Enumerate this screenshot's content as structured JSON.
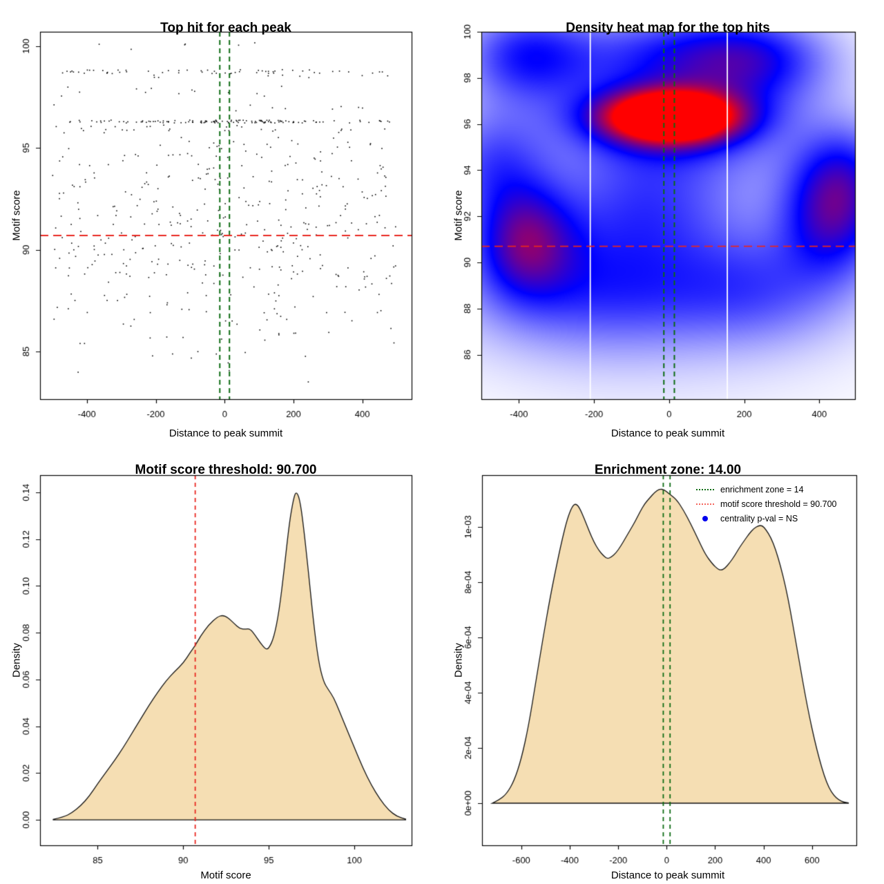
{
  "page": {
    "background": "#ffffff"
  },
  "colors": {
    "point": "#000000",
    "frame": "#000000",
    "tick_text": "#000000",
    "threshold_red": "#e8261f",
    "zone_green": "#0c6b12",
    "legend_red": "#f4645c",
    "legend_blue": "#0000ee",
    "area_fill": "#f5deb3",
    "area_stroke": "#111111",
    "white_gridline": "#ffffff",
    "heat_ramp": [
      "#ffffff",
      "#0000ff",
      "#ff0000"
    ]
  },
  "chart_data": [
    {
      "id": "top-hit-scatter",
      "type": "scatter",
      "title": "Top hit for each peak",
      "xlabel": "Distance to peak summit",
      "ylabel": "Motif score",
      "xlim": [
        -536,
        543
      ],
      "ylim": [
        82.66,
        100.71
      ],
      "xticks": [
        -400,
        -200,
        0,
        200,
        400
      ],
      "xtick_labels": [
        "-400",
        "-200",
        "0",
        "200",
        "400"
      ],
      "yticks": [
        85,
        90,
        95,
        100
      ],
      "ytick_labels": [
        "85",
        "90",
        "95",
        "100"
      ],
      "motif_score_threshold": 90.7,
      "enrichment_zone": [
        -14,
        14
      ],
      "x_range": [
        -500,
        500
      ],
      "seed": 101,
      "point_size": 1.6,
      "bands": [
        {
          "y": 100.0,
          "jy": 0.18,
          "n": 6
        },
        {
          "y": 98.75,
          "jy": 0.1,
          "n": 58
        },
        {
          "y": 98.5,
          "jy": 0.08,
          "n": 9
        },
        {
          "y": 97.8,
          "jy": 0.3,
          "n": 13
        },
        {
          "y": 96.95,
          "jy": 0.18,
          "n": 9
        },
        {
          "y": 96.3,
          "jy": 0.07,
          "n": 80
        },
        {
          "y": 96.3,
          "jy": 0.07,
          "n": 45,
          "center": 30,
          "spread": 130
        },
        {
          "y": 96.0,
          "jy": 0.15,
          "n": 22
        },
        {
          "y": 95.5,
          "jy": 0.4,
          "n": 18
        },
        {
          "y": 94.8,
          "jy": 0.45,
          "n": 32
        },
        {
          "y": 93.9,
          "jy": 0.5,
          "n": 40
        },
        {
          "y": 92.9,
          "jy": 0.55,
          "n": 46
        },
        {
          "y": 91.8,
          "jy": 0.6,
          "n": 54
        },
        {
          "y": 90.7,
          "jy": 0.6,
          "n": 58
        },
        {
          "y": 89.6,
          "jy": 0.6,
          "n": 58
        },
        {
          "y": 88.4,
          "jy": 0.7,
          "n": 44
        },
        {
          "y": 87.2,
          "jy": 0.7,
          "n": 34
        },
        {
          "y": 86.0,
          "jy": 0.65,
          "n": 20
        },
        {
          "y": 84.9,
          "jy": 0.5,
          "n": 9
        },
        {
          "y": 83.9,
          "jy": 0.4,
          "n": 3
        }
      ]
    },
    {
      "id": "density-heatmap",
      "type": "heatmap",
      "title": "Density heat map for the top hits",
      "xlabel": "Distance to peak summit",
      "ylabel": "Motif score",
      "xlim": [
        -500,
        495
      ],
      "ylim": [
        84.07,
        100
      ],
      "xticks": [
        -400,
        -200,
        0,
        200,
        400
      ],
      "xtick_labels": [
        "-400",
        "-200",
        "0",
        "200",
        "400"
      ],
      "yticks": [
        86,
        88,
        90,
        92,
        94,
        96,
        98,
        100
      ],
      "ytick_labels": [
        "86",
        "88",
        "90",
        "92",
        "94",
        "96",
        "98",
        "100"
      ],
      "motif_score_threshold": 90.7,
      "enrichment_zone": [
        -14,
        14
      ],
      "white_gridlines": [
        -210,
        155
      ],
      "hotspot": {
        "x": 5,
        "y": 96.3
      },
      "kernels": [
        {
          "x": 5,
          "y": 96.3,
          "sx": 120,
          "sy": 0.75,
          "w": 1.25
        },
        {
          "x": 5,
          "y": 96.4,
          "sx": 210,
          "sy": 1.7,
          "w": 0.45
        },
        {
          "x": -382,
          "y": 91.0,
          "sx": 90,
          "sy": 1.7,
          "w": 0.5
        },
        {
          "x": 436,
          "y": 92.0,
          "sx": 95,
          "sy": 1.8,
          "w": 0.5
        },
        {
          "x": -380,
          "y": 99.0,
          "sx": 120,
          "sy": 1.4,
          "w": 0.4
        },
        {
          "x": 230,
          "y": 98.8,
          "sx": 140,
          "sy": 1.3,
          "w": 0.36
        },
        {
          "x": 0,
          "y": 99.3,
          "sx": 190,
          "sy": 1.1,
          "w": 0.26
        },
        {
          "x": -180,
          "y": 89.0,
          "sx": 250,
          "sy": 2.0,
          "w": 0.34
        },
        {
          "x": 250,
          "y": 88.8,
          "sx": 170,
          "sy": 1.7,
          "w": 0.22
        },
        {
          "x": -470,
          "y": 94.3,
          "sx": 100,
          "sy": 1.7,
          "w": 0.28
        },
        {
          "x": 470,
          "y": 94.0,
          "sx": 90,
          "sy": 1.5,
          "w": 0.26
        },
        {
          "x": -60,
          "y": 92.5,
          "sx": 160,
          "sy": 1.6,
          "w": 0.2
        },
        {
          "x": 0,
          "y": 92.0,
          "sx": 400,
          "sy": 5.0,
          "w": 0.12
        }
      ]
    },
    {
      "id": "motif-score-density",
      "type": "area",
      "title": "Motif score threshold: 90.700",
      "xlabel": "Motif score",
      "ylabel": "Density",
      "xlim": [
        81.63,
        103.35
      ],
      "ylim": [
        -0.0109,
        0.1474
      ],
      "xticks": [
        85,
        90,
        95,
        100
      ],
      "xtick_labels": [
        "85",
        "90",
        "95",
        "100"
      ],
      "yticks": [
        0,
        0.02,
        0.04,
        0.06,
        0.08,
        0.1,
        0.12,
        0.14
      ],
      "ytick_labels": [
        "0.00",
        "0.02",
        "0.04",
        "0.06",
        "0.08",
        "0.10",
        "0.12",
        "0.14"
      ],
      "motif_score_threshold": 90.7,
      "curve_x": [
        82.4,
        83.0,
        83.5,
        84.0,
        84.5,
        85.0,
        85.5,
        86.0,
        86.5,
        87.0,
        87.5,
        88.0,
        88.5,
        89.0,
        89.5,
        90.0,
        90.4,
        90.7,
        91.0,
        91.5,
        92.0,
        92.3,
        92.6,
        93.0,
        93.3,
        93.6,
        93.9,
        94.2,
        94.5,
        94.8,
        95.0,
        95.3,
        95.6,
        95.9,
        96.2,
        96.45,
        96.6,
        96.8,
        97.0,
        97.3,
        97.6,
        97.9,
        98.2,
        98.5,
        98.8,
        99.1,
        99.5,
        100.0,
        100.5,
        101.0,
        101.5,
        102.0,
        102.5,
        103.0
      ],
      "curve_y": [
        0.0002,
        0.0012,
        0.003,
        0.006,
        0.01,
        0.0155,
        0.0205,
        0.0255,
        0.031,
        0.037,
        0.043,
        0.049,
        0.0545,
        0.0595,
        0.0635,
        0.067,
        0.0715,
        0.0745,
        0.0785,
        0.0835,
        0.0868,
        0.0875,
        0.0866,
        0.0838,
        0.0818,
        0.0815,
        0.0818,
        0.079,
        0.0758,
        0.073,
        0.0732,
        0.078,
        0.089,
        0.107,
        0.127,
        0.1375,
        0.1405,
        0.1375,
        0.1275,
        0.1075,
        0.0855,
        0.068,
        0.059,
        0.0555,
        0.0522,
        0.047,
        0.0398,
        0.031,
        0.0222,
        0.0148,
        0.0088,
        0.0042,
        0.0014,
        0.0003
      ]
    },
    {
      "id": "distance-density",
      "type": "area",
      "title": "Enrichment zone: 14.00",
      "xlabel": "Distance to peak summit",
      "ylabel": "Density",
      "xlim": [
        -762,
        783
      ],
      "ylim": [
        -0.0001525,
        0.0011875
      ],
      "xticks": [
        -600,
        -400,
        -200,
        0,
        200,
        400,
        600
      ],
      "xtick_labels": [
        "-600",
        "-400",
        "-200",
        "0",
        "200",
        "400",
        "600"
      ],
      "yticks": [
        0,
        0.0002,
        0.0004,
        0.0006,
        0.0008,
        0.001
      ],
      "ytick_labels": [
        "0e+00",
        "2e-04",
        "4e-04",
        "6e-04",
        "8e-04",
        "1e-03"
      ],
      "enrichment_zone": [
        -14,
        14
      ],
      "curve_x": [
        -720,
        -690,
        -660,
        -630,
        -600,
        -570,
        -540,
        -510,
        -480,
        -450,
        -430,
        -410,
        -390,
        -375,
        -360,
        -340,
        -320,
        -300,
        -280,
        -260,
        -245,
        -230,
        -210,
        -190,
        -170,
        -150,
        -130,
        -110,
        -90,
        -70,
        -50,
        -30,
        -10,
        10,
        40,
        70,
        100,
        130,
        160,
        190,
        210,
        225,
        240,
        260,
        280,
        300,
        320,
        340,
        360,
        380,
        395,
        410,
        430,
        450,
        470,
        490,
        510,
        530,
        550,
        570,
        590,
        610,
        630,
        650,
        670,
        690,
        710,
        730,
        750
      ],
      "curve_y": [
        0,
        1.2e-05,
        3.5e-05,
        8e-05,
        0.00016,
        0.00028,
        0.00044,
        0.0006,
        0.00075,
        0.00088,
        0.00096,
        0.00103,
        0.001075,
        0.001085,
        0.00107,
        0.00103,
        0.000985,
        0.000945,
        0.000915,
        0.000895,
        0.000885,
        0.00089,
        0.000905,
        0.00093,
        0.00096,
        0.00099,
        0.00102,
        0.001055,
        0.001085,
        0.001105,
        0.001125,
        0.0011375,
        0.001135,
        0.00112,
        0.0011,
        0.00106,
        0.00101,
        0.000955,
        0.0009,
        0.000865,
        0.000848,
        0.000843,
        0.00085,
        0.00087,
        0.000895,
        0.000925,
        0.00095,
        0.000975,
        0.000995,
        0.001005,
        0.001005,
        0.00099,
        0.000962,
        0.000918,
        0.000858,
        0.000788,
        0.0007,
        0.0006,
        0.0005,
        0.0004,
        0.00031,
        0.00023,
        0.00016,
        0.0001,
        5.5e-05,
        2.8e-05,
        1.2e-05,
        4e-06,
        1e-06
      ],
      "legend": [
        {
          "style": "dotted-line",
          "color": "#0c6b12",
          "label": "enrichment zone = 14"
        },
        {
          "style": "dotted-line",
          "color": "#f4645c",
          "label": "motif score threshold = 90.700"
        },
        {
          "style": "dot",
          "color": "#0000ee",
          "label": "centrality p-val = NS"
        }
      ]
    }
  ]
}
